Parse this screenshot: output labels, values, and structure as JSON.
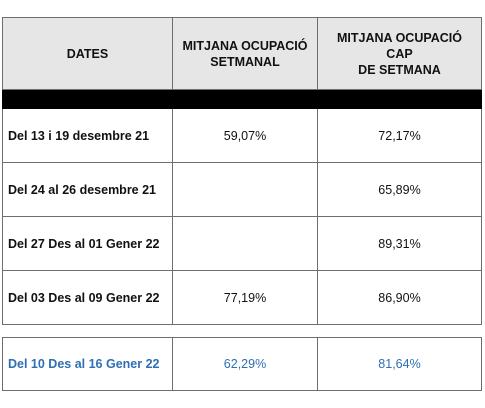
{
  "headers": {
    "dates": "DATES",
    "weekly_line1": "MITJANA OCUPACIÓ",
    "weekly_line2": "SETMANAL",
    "weekend_line1": "MITJANA OCUPACIÓ CAP",
    "weekend_line2": "DE SETMANA"
  },
  "rows": [
    {
      "dates": "Del 13 i 19 desembre 21",
      "weekly": "59,07%",
      "weekend": "72,17%"
    },
    {
      "dates": "Del 24 al 26 desembre 21",
      "weekly": "",
      "weekend": "65,89%"
    },
    {
      "dates": "Del 27 Des al 01 Gener 22",
      "weekly": "",
      "weekend": "89,31%"
    },
    {
      "dates": "Del 03 Des al 09 Gener 22",
      "weekly": "77,19%",
      "weekend": "86,90%"
    }
  ],
  "highlight_row": {
    "dates": "Del 10 Des al 16 Gener 22",
    "weekly": "62,29%",
    "weekend": "81,64%"
  },
  "colors": {
    "header_bg": "#e6e6e6",
    "separator_bar": "#000000",
    "highlight_text": "#2f6fb3",
    "border": "#6e6e6e"
  }
}
